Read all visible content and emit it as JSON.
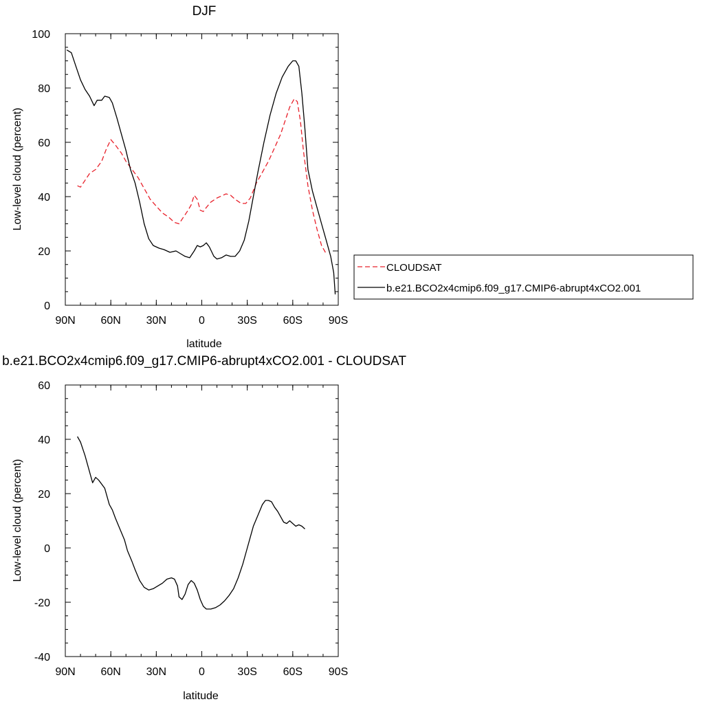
{
  "chart_data": [
    {
      "type": "line",
      "title": "DJF",
      "xlabel": "latitude",
      "ylabel": "Low-level cloud (percent)",
      "xlim": [
        90,
        -90
      ],
      "ylim": [
        0,
        100
      ],
      "xticks": [
        {
          "value": 90,
          "label": "90N"
        },
        {
          "value": 60,
          "label": "60N"
        },
        {
          "value": 30,
          "label": "30N"
        },
        {
          "value": 0,
          "label": "0"
        },
        {
          "value": -30,
          "label": "30S"
        },
        {
          "value": -60,
          "label": "60S"
        },
        {
          "value": -90,
          "label": "90S"
        }
      ],
      "yticks": [
        {
          "value": 0,
          "label": "0"
        },
        {
          "value": 20,
          "label": "20"
        },
        {
          "value": 40,
          "label": "40"
        },
        {
          "value": 60,
          "label": "60"
        },
        {
          "value": 80,
          "label": "80"
        },
        {
          "value": 100,
          "label": "100"
        }
      ],
      "legend_position": "right",
      "series": [
        {
          "name": "CLOUDSAT",
          "color": "#e8202a",
          "dash": true,
          "points": [
            [
              82,
              44
            ],
            [
              80,
              43.5
            ],
            [
              77,
              46
            ],
            [
              74,
              48.5
            ],
            [
              70,
              50
            ],
            [
              66,
              53
            ],
            [
              63,
              57.5
            ],
            [
              60,
              61
            ],
            [
              57,
              59
            ],
            [
              53,
              56
            ],
            [
              50,
              53
            ],
            [
              46,
              50
            ],
            [
              42,
              47
            ],
            [
              38,
              43
            ],
            [
              34,
              39
            ],
            [
              30,
              36.5
            ],
            [
              26,
              34
            ],
            [
              22,
              32.5
            ],
            [
              18,
              30.5
            ],
            [
              15,
              30
            ],
            [
              12,
              32.5
            ],
            [
              9,
              35
            ],
            [
              7,
              37
            ],
            [
              5,
              40.5
            ],
            [
              3,
              39
            ],
            [
              1,
              35
            ],
            [
              -1,
              34.5
            ],
            [
              -3,
              36
            ],
            [
              -6,
              38
            ],
            [
              -10,
              39.5
            ],
            [
              -14,
              40.5
            ],
            [
              -16,
              41
            ],
            [
              -19,
              40.5
            ],
            [
              -22,
              39
            ],
            [
              -26,
              37.5
            ],
            [
              -29,
              37.5
            ],
            [
              -32,
              39.5
            ],
            [
              -36,
              45
            ],
            [
              -40,
              49
            ],
            [
              -44,
              53
            ],
            [
              -48,
              58
            ],
            [
              -52,
              63
            ],
            [
              -55,
              68
            ],
            [
              -58,
              73
            ],
            [
              -61,
              76
            ],
            [
              -63,
              75
            ],
            [
              -65,
              68
            ],
            [
              -67,
              57
            ],
            [
              -70,
              44
            ],
            [
              -73,
              35
            ],
            [
              -76,
              28
            ],
            [
              -79,
              22
            ],
            [
              -82,
              19
            ]
          ]
        },
        {
          "name": "b.e21.BCO2x4cmip6.f09_g17.CMIP6-abrupt4xCO2.001",
          "color": "#000000",
          "dash": false,
          "points": [
            [
              89,
              94
            ],
            [
              86,
              93
            ],
            [
              83,
              88
            ],
            [
              80,
              83
            ],
            [
              77,
              79.5
            ],
            [
              74,
              77
            ],
            [
              71,
              73.5
            ],
            [
              69,
              75.5
            ],
            [
              66,
              75.5
            ],
            [
              64,
              77
            ],
            [
              61,
              76.5
            ],
            [
              59,
              74.5
            ],
            [
              56,
              69
            ],
            [
              53,
              63
            ],
            [
              50,
              57
            ],
            [
              47,
              50
            ],
            [
              44,
              45
            ],
            [
              41,
              38
            ],
            [
              38,
              30
            ],
            [
              35,
              24.5
            ],
            [
              32,
              22
            ],
            [
              28,
              21
            ],
            [
              25,
              20.5
            ],
            [
              21,
              19.5
            ],
            [
              17,
              20
            ],
            [
              14,
              19
            ],
            [
              11,
              18
            ],
            [
              8,
              17.5
            ],
            [
              5,
              20
            ],
            [
              3,
              22
            ],
            [
              1,
              21.5
            ],
            [
              -1,
              22
            ],
            [
              -3,
              23
            ],
            [
              -5,
              21.5
            ],
            [
              -8,
              18
            ],
            [
              -10,
              17
            ],
            [
              -13,
              17.5
            ],
            [
              -16,
              18.5
            ],
            [
              -19,
              18
            ],
            [
              -22,
              18
            ],
            [
              -25,
              20
            ],
            [
              -28,
              24
            ],
            [
              -31,
              31
            ],
            [
              -34,
              40
            ],
            [
              -37,
              49
            ],
            [
              -41,
              60
            ],
            [
              -45,
              70
            ],
            [
              -49,
              78
            ],
            [
              -53,
              84
            ],
            [
              -57,
              88
            ],
            [
              -60,
              90
            ],
            [
              -62,
              90
            ],
            [
              -64,
              88
            ],
            [
              -66,
              78
            ],
            [
              -68,
              65
            ],
            [
              -70,
              50
            ],
            [
              -73,
              42
            ],
            [
              -76,
              36
            ],
            [
              -79,
              30
            ],
            [
              -82,
              24
            ],
            [
              -85,
              18
            ],
            [
              -87,
              12
            ],
            [
              -88,
              4
            ]
          ]
        }
      ]
    },
    {
      "type": "line",
      "title": "b.e21.BCO2x4cmip6.f09_g17.CMIP6-abrupt4xCO2.001 - CLOUDSAT",
      "xlabel": "latitude",
      "ylabel": "Low-level cloud (percent)",
      "xlim": [
        90,
        -90
      ],
      "ylim": [
        -40,
        60
      ],
      "xticks": [
        {
          "value": 90,
          "label": "90N"
        },
        {
          "value": 60,
          "label": "60N"
        },
        {
          "value": 30,
          "label": "30N"
        },
        {
          "value": 0,
          "label": "0"
        },
        {
          "value": -30,
          "label": "30S"
        },
        {
          "value": -60,
          "label": "60S"
        },
        {
          "value": -90,
          "label": "90S"
        }
      ],
      "yticks": [
        {
          "value": -40,
          "label": "-40"
        },
        {
          "value": -20,
          "label": "-20"
        },
        {
          "value": 0,
          "label": "0"
        },
        {
          "value": 20,
          "label": "20"
        },
        {
          "value": 40,
          "label": "40"
        },
        {
          "value": 60,
          "label": "60"
        }
      ],
      "series": [
        {
          "name": "",
          "color": "#000000",
          "dash": false,
          "points": [
            [
              82,
              41
            ],
            [
              80,
              39
            ],
            [
              77,
              34
            ],
            [
              74,
              28
            ],
            [
              72,
              24
            ],
            [
              70,
              26
            ],
            [
              68,
              25
            ],
            [
              64,
              22
            ],
            [
              61,
              16
            ],
            [
              59,
              14
            ],
            [
              57,
              11
            ],
            [
              54,
              7
            ],
            [
              51,
              3
            ],
            [
              49,
              -1
            ],
            [
              46,
              -5
            ],
            [
              44,
              -8
            ],
            [
              41,
              -12
            ],
            [
              38,
              -14.5
            ],
            [
              35,
              -15.5
            ],
            [
              32,
              -15
            ],
            [
              29,
              -14
            ],
            [
              26,
              -13
            ],
            [
              23,
              -11.5
            ],
            [
              20,
              -11
            ],
            [
              18,
              -11.5
            ],
            [
              16,
              -14
            ],
            [
              15,
              -18
            ],
            [
              13,
              -19
            ],
            [
              11,
              -17
            ],
            [
              9,
              -13.5
            ],
            [
              7,
              -12
            ],
            [
              5,
              -13
            ],
            [
              3,
              -15.5
            ],
            [
              1,
              -19
            ],
            [
              -1,
              -21.5
            ],
            [
              -3,
              -22.5
            ],
            [
              -6,
              -22.5
            ],
            [
              -9,
              -22
            ],
            [
              -12,
              -21
            ],
            [
              -15,
              -19.5
            ],
            [
              -18,
              -17.5
            ],
            [
              -21,
              -15
            ],
            [
              -24,
              -11
            ],
            [
              -27,
              -6
            ],
            [
              -30,
              0
            ],
            [
              -32,
              4
            ],
            [
              -34,
              8
            ],
            [
              -37,
              12
            ],
            [
              -40,
              16
            ],
            [
              -42,
              17.5
            ],
            [
              -44,
              17.5
            ],
            [
              -46,
              17
            ],
            [
              -48,
              15
            ],
            [
              -50,
              13.5
            ],
            [
              -52,
              11.5
            ],
            [
              -54,
              9.5
            ],
            [
              -56,
              9
            ],
            [
              -58,
              10
            ],
            [
              -60,
              9
            ],
            [
              -62,
              8
            ],
            [
              -64,
              8.5
            ],
            [
              -66,
              8
            ],
            [
              -68,
              7
            ]
          ]
        }
      ]
    }
  ]
}
